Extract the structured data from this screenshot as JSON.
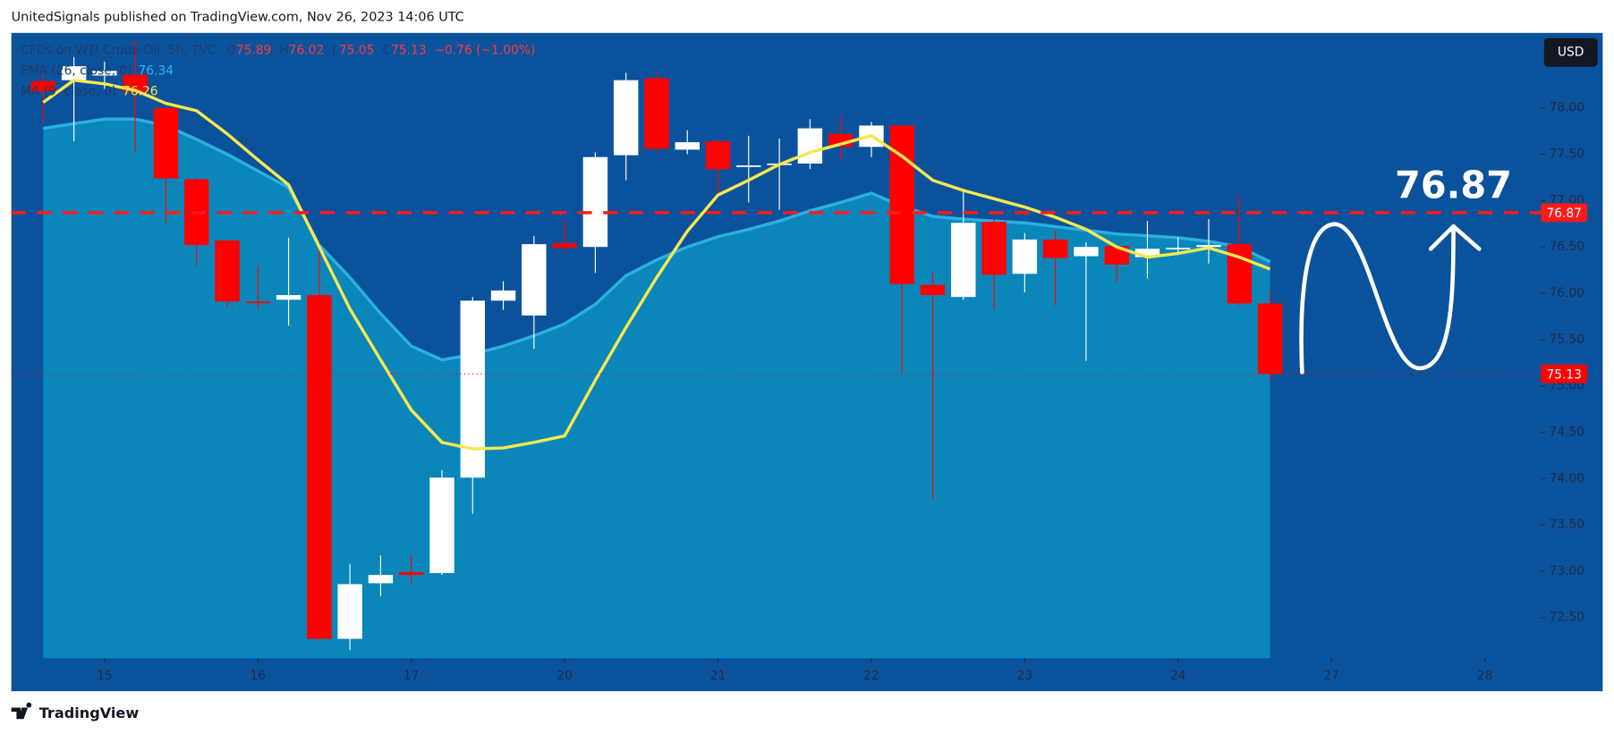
{
  "header": "UnitedSignals published on TradingView.com, Nov 26, 2023 14:06 UTC",
  "currency": "USD",
  "brand": "TradingView",
  "chart_data": {
    "type": "candlestick",
    "title": "CFDs on WTI Crude Oil, 5h, TVC",
    "ohlc_labels": [
      "O",
      "H",
      "L",
      "C"
    ],
    "change_label": "−0.76 (−1.00%)",
    "categories": [
      null,
      null,
      null,
      null,
      null,
      null,
      null,
      null,
      null,
      null,
      null,
      null,
      null,
      null,
      null,
      null,
      null,
      null,
      null,
      null,
      null,
      null,
      null,
      null,
      null,
      null,
      null,
      null,
      null,
      null,
      null,
      null,
      null,
      null,
      null,
      null,
      null,
      null,
      null,
      null,
      null
    ],
    "open": [
      78.29,
      78.3,
      78.35,
      78.36,
      78.0,
      77.23,
      76.57,
      75.91,
      75.93,
      75.98,
      72.27,
      72.87,
      72.99,
      72.98,
      74.01,
      75.92,
      75.76,
      76.54,
      76.5,
      77.49,
      78.32,
      77.55,
      77.64,
      77.37,
      77.39,
      77.4,
      77.72,
      77.58,
      77.81,
      76.09,
      75.96,
      76.77,
      76.21,
      76.58,
      76.4,
      76.51,
      76.39,
      76.48,
      76.5,
      76.53,
      75.89
    ],
    "high": [
      78.35,
      78.55,
      78.5,
      78.75,
      78.05,
      77.25,
      76.58,
      76.3,
      76.6,
      76.55,
      73.08,
      73.17,
      73.18,
      74.09,
      75.96,
      76.13,
      76.62,
      76.78,
      77.52,
      78.38,
      78.39,
      77.76,
      77.66,
      77.7,
      77.67,
      77.88,
      77.92,
      77.85,
      77.83,
      76.23,
      77.13,
      76.8,
      76.65,
      76.68,
      76.55,
      76.53,
      76.78,
      76.6,
      76.8,
      77.05,
      76.02
    ],
    "low": [
      77.83,
      77.64,
      78.2,
      77.52,
      76.74,
      76.3,
      75.85,
      75.83,
      75.65,
      72.25,
      72.15,
      72.73,
      72.85,
      72.96,
      73.62,
      75.82,
      75.4,
      76.45,
      76.22,
      77.22,
      77.52,
      77.5,
      77.04,
      76.98,
      76.9,
      77.34,
      77.43,
      77.47,
      75.15,
      73.78,
      75.93,
      75.82,
      76.01,
      75.87,
      75.27,
      76.12,
      76.16,
      76.42,
      76.32,
      75.87,
      75.05
    ],
    "close": [
      78.18,
      78.45,
      78.4,
      78.17,
      77.24,
      76.52,
      75.91,
      75.9,
      75.98,
      72.27,
      72.86,
      72.96,
      72.96,
      74.01,
      75.92,
      76.03,
      76.53,
      76.49,
      77.47,
      78.3,
      77.56,
      77.63,
      77.34,
      77.38,
      77.4,
      77.78,
      77.58,
      77.81,
      76.1,
      75.98,
      76.76,
      76.2,
      76.58,
      76.38,
      76.5,
      76.31,
      76.48,
      76.49,
      76.52,
      75.89,
      75.13
    ],
    "up_color": "#ffffff",
    "down_color": "#ff0000",
    "lines": [
      {
        "name": "EMA (26, close, 0)",
        "color": "#2bb0e0",
        "fill": "#0a86ba",
        "values": [
          77.78,
          77.83,
          77.88,
          77.88,
          77.81,
          77.66,
          77.5,
          77.32,
          77.14,
          76.52,
          76.17,
          75.78,
          75.43,
          75.28,
          75.34,
          75.43,
          75.54,
          75.67,
          75.88,
          76.19,
          76.36,
          76.5,
          76.61,
          76.69,
          76.78,
          76.89,
          76.98,
          77.08,
          76.94,
          76.83,
          76.8,
          76.78,
          76.76,
          76.72,
          76.68,
          76.64,
          76.62,
          76.6,
          76.56,
          76.5,
          76.34
        ]
      },
      {
        "name": "MA (9, close, 0)",
        "color": "#f7e84e",
        "values": [
          78.06,
          78.3,
          78.26,
          78.19,
          78.05,
          77.97,
          77.72,
          77.44,
          77.17,
          76.5,
          75.83,
          75.28,
          74.74,
          74.39,
          74.32,
          74.33,
          74.39,
          74.46,
          75.06,
          75.63,
          76.17,
          76.67,
          77.06,
          77.22,
          77.39,
          77.52,
          77.61,
          77.7,
          77.48,
          77.22,
          77.11,
          77.02,
          76.93,
          76.82,
          76.69,
          76.5,
          76.39,
          76.43,
          76.49,
          76.39,
          76.26
        ]
      }
    ],
    "target": 76.87,
    "target_color": "#ff1a1a",
    "xlim": [
      -1.04,
      48.83
    ],
    "xticks": [
      {
        "value": 2,
        "label": "15"
      },
      {
        "value": 7,
        "label": "16"
      },
      {
        "value": 12,
        "label": "17"
      },
      {
        "value": 17,
        "label": "20"
      },
      {
        "value": 22,
        "label": "21"
      },
      {
        "value": 27,
        "label": "22"
      },
      {
        "value": 32,
        "label": "23"
      },
      {
        "value": 37,
        "label": "24"
      },
      {
        "value": 42,
        "label": "27"
      },
      {
        "value": 47,
        "label": "28"
      }
    ],
    "ylim": [
      72.06,
      78.81
    ],
    "yticks": [
      {
        "value": 72.5,
        "label": "72.50"
      },
      {
        "value": 73,
        "label": "73.00"
      },
      {
        "value": 73.5,
        "label": "73.50"
      },
      {
        "value": 74,
        "label": "74.00"
      },
      {
        "value": 74.5,
        "label": "74.50"
      },
      {
        "value": 75,
        "label": "75.00"
      },
      {
        "value": 75.5,
        "label": "75.50"
      },
      {
        "value": 76,
        "label": "76.00"
      },
      {
        "value": 76.5,
        "label": "76.50"
      },
      {
        "value": 77,
        "label": "77.00"
      },
      {
        "value": 77.5,
        "label": "77.50"
      },
      {
        "value": 78,
        "label": "78.00"
      }
    ],
    "grid": false
  }
}
